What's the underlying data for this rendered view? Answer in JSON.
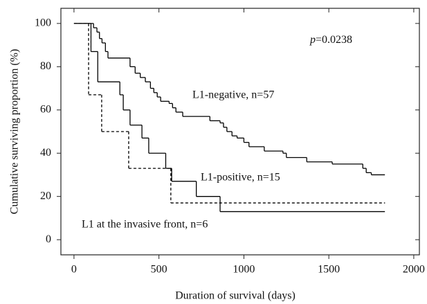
{
  "chart_data": {
    "type": "step",
    "y_label": "Cumulative surviving proportion (%)",
    "x_label": "Duration of survival (days)",
    "p_value": {
      "symbol": "p",
      "text": "=0.0238"
    },
    "xlim": [
      -77,
      2033
    ],
    "ylim": [
      -7,
      107
    ],
    "xticks": [
      0,
      500,
      1000,
      1500,
      2000
    ],
    "yticks": [
      0,
      20,
      40,
      60,
      80,
      100
    ],
    "series": [
      {
        "name": "L1-negative, n=57",
        "color": "#000000",
        "dash": false,
        "x": [
          0,
          115,
          135,
          150,
          165,
          185,
          200,
          330,
          360,
          390,
          420,
          450,
          470,
          490,
          510,
          560,
          580,
          600,
          640,
          800,
          860,
          880,
          900,
          930,
          960,
          1000,
          1030,
          1120,
          1230,
          1250,
          1370,
          1520,
          1700,
          1720,
          1750,
          1830
        ],
        "values": [
          100,
          98,
          96,
          93,
          91,
          87,
          84,
          80,
          77,
          75,
          73,
          70,
          68,
          66,
          64,
          63,
          61,
          59,
          57,
          55,
          54,
          52,
          50,
          48,
          47,
          45,
          43,
          41,
          40,
          38,
          36,
          35,
          33,
          31,
          30,
          30
        ]
      },
      {
        "name": "L1-positive, n=15",
        "color": "#000000",
        "dash": false,
        "x": [
          0,
          100,
          140,
          270,
          290,
          330,
          400,
          440,
          540,
          575,
          720,
          860,
          1830
        ],
        "values": [
          100,
          87,
          73,
          67,
          60,
          53,
          47,
          40,
          33,
          27,
          20,
          13,
          13
        ]
      },
      {
        "name": "L1 at the invasive front, n=6",
        "color": "#000000",
        "dash": true,
        "x": [
          0,
          86,
          163,
          322,
          570,
          1830
        ],
        "values": [
          100,
          67,
          50,
          33,
          17,
          17
        ]
      }
    ]
  }
}
